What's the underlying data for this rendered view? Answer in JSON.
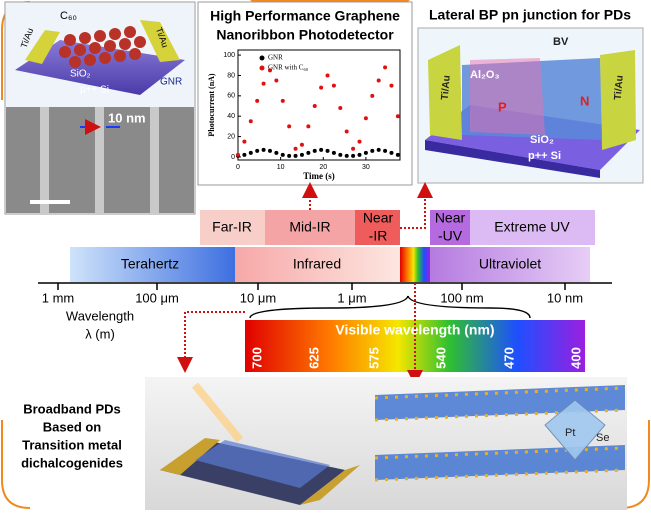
{
  "gnr_panel": {
    "labels": [
      "C₆₀",
      "Ti/Au",
      "Ti/Au",
      "SiO₂",
      "p++ Si",
      "GNR"
    ],
    "sem_label": "10 nm"
  },
  "gnr_plot": {
    "title": [
      "High Performance Graphene",
      "Nanoribbon Photodetector"
    ],
    "y_label": "Photocurrent (nA)",
    "x_label": "Time (s)",
    "xlim": [
      0,
      38
    ],
    "xticks": [
      0,
      10,
      20,
      30
    ],
    "ylim": [
      -3,
      105
    ],
    "yticks": [
      0,
      20,
      40,
      60,
      80,
      100
    ],
    "x": [
      0,
      1.5,
      3,
      4.5,
      6,
      7.5,
      9,
      10.5,
      12,
      13.5,
      15,
      16.5,
      18,
      19.5,
      21,
      22.5,
      24,
      25.5,
      27,
      28.5,
      30,
      31.5,
      33,
      34.5,
      36,
      37.5
    ],
    "series": [
      {
        "name": "GNR",
        "color": "#000000",
        "values": [
          1,
          2,
          4,
          6,
          7,
          6,
          4,
          2,
          1,
          1,
          2,
          4,
          6,
          7,
          6,
          4,
          2,
          1,
          1,
          2,
          4,
          6,
          7,
          6,
          4,
          2
        ]
      },
      {
        "name": "GNR with C₆₀",
        "color": "#e01010",
        "values": [
          2,
          15,
          35,
          55,
          72,
          85,
          75,
          55,
          30,
          8,
          12,
          30,
          50,
          68,
          80,
          70,
          48,
          25,
          8,
          15,
          38,
          60,
          75,
          88,
          70,
          40
        ]
      }
    ]
  },
  "bp_panel": {
    "title": "Lateral BP pn junction for PDs",
    "labels": [
      "BV",
      "Al₂O₃",
      "Ti/Au",
      "Ti/Au",
      "P",
      "N",
      "SiO₂",
      "p++ Si"
    ]
  },
  "spectrum": {
    "sub_bands": [
      "Far-IR",
      "Mid-IR",
      "Near",
      "-IR",
      "Near",
      "-UV",
      "Extreme UV"
    ],
    "bands": [
      "Terahertz",
      "Infrared",
      "Ultraviolet"
    ],
    "axis_labels": [
      "1 mm",
      "100 μm",
      "10 μm",
      "1 μm",
      "100 nm",
      "10 nm"
    ],
    "axis_title": [
      "Wavelength",
      "λ (m)"
    ],
    "visible_title": "Visible wavelength (nm)",
    "visible_labels": [
      "700",
      "625",
      "575",
      "540",
      "470",
      "400"
    ]
  },
  "tmd_panel": {
    "lines": [
      "Broadband PDs",
      "Based on",
      "Transition metal",
      "dichalcogenides"
    ],
    "atoms": [
      "Pt",
      "Se"
    ]
  }
}
